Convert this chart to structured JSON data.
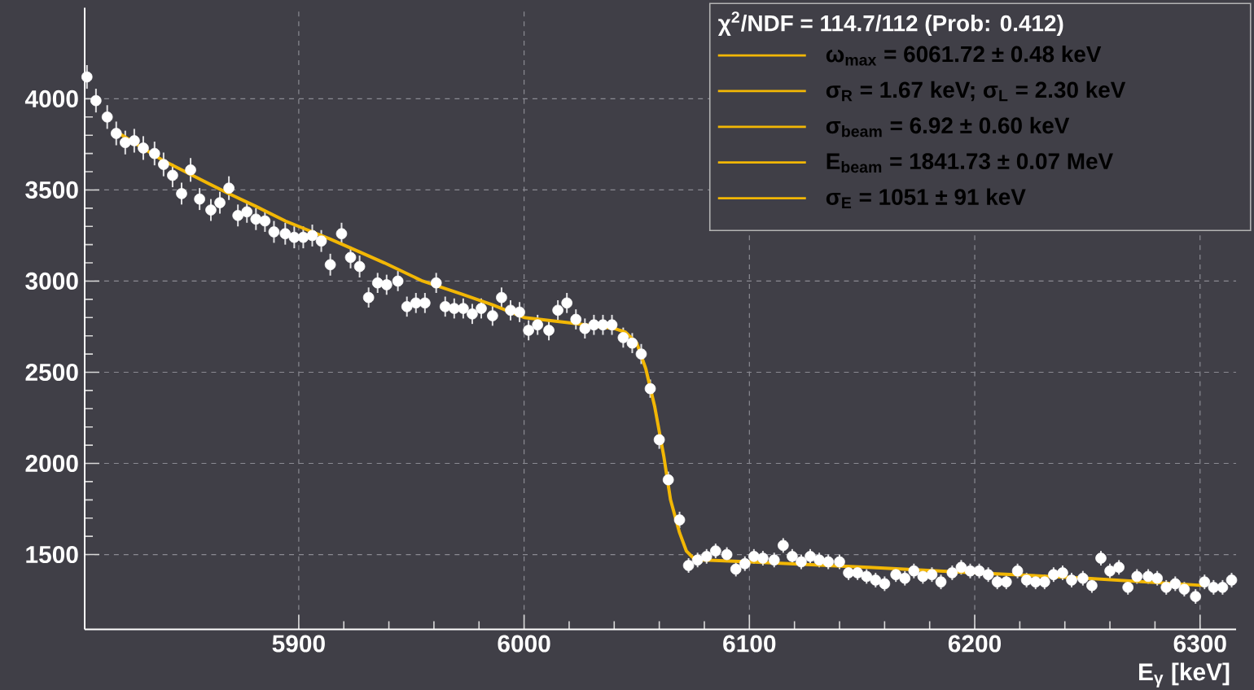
{
  "chart_data": {
    "type": "scatter",
    "xlabel": "E$_{γ}$ [keV]",
    "legend_title": "χ$^{2}$/NDF = 114.7/112  (Prob: 0.412)",
    "xlim": [
      5805,
      6316
    ],
    "ylim": [
      1090,
      4500
    ],
    "xticks": [
      5900,
      6000,
      6100,
      6200,
      6300
    ],
    "yticks": [
      1500,
      2000,
      2500,
      3000,
      3500,
      4000
    ],
    "grid": true,
    "legend": "top right",
    "annotations": [
      "σ$_{R}$ = 1.67 keV;   σ$_{L}$ =  2.30 keV",
      "σ$_{beam}$ =    6.92 ± 0.60 keV",
      "E$_{beam}$ =  1841.73 ±  0.07 MeV",
      "σ$_{E}$ = 1051 ±   91 keV"
    ],
    "series": [
      {
        "color": "#ffffff",
        "marker": "circle",
        "x": [
          5806,
          5810,
          5815,
          5819,
          5823,
          5827,
          5831,
          5836,
          5840,
          5844,
          5848,
          5852,
          5856,
          5861,
          5865,
          5869,
          5873,
          5877,
          5881,
          5885,
          5889,
          5894,
          5898,
          5902,
          5906,
          5910,
          5914,
          5919,
          5923,
          5927,
          5931,
          5935,
          5939,
          5944,
          5948,
          5952,
          5956,
          5961,
          5965,
          5969,
          5973,
          5977,
          5981,
          5986,
          5990,
          5994,
          5998,
          6002,
          6006,
          6011,
          6015,
          6019,
          6023,
          6027,
          6031,
          6035,
          6039,
          6044,
          6048,
          6052,
          6056,
          6060,
          6064,
          6069,
          6073,
          6077,
          6081,
          6085,
          6090,
          6094,
          6098,
          6102,
          6106,
          6111,
          6115,
          6119,
          6123,
          6127,
          6131,
          6135,
          6140,
          6144,
          6148,
          6152,
          6156,
          6160,
          6165,
          6169,
          6173,
          6177,
          6181,
          6185,
          6190,
          6194,
          6198,
          6202,
          6206,
          6210,
          6214,
          6219,
          6223,
          6227,
          6231,
          6235,
          6239,
          6243,
          6248,
          6252,
          6256,
          6260,
          6264,
          6268,
          6272,
          6277,
          6281,
          6285,
          6289,
          6293,
          6298,
          6302,
          6306,
          6310,
          6314
        ],
        "values": [
          4120,
          3990,
          3900,
          3810,
          3760,
          3770,
          3730,
          3700,
          3640,
          3580,
          3480,
          3610,
          3450,
          3390,
          3430,
          3510,
          3360,
          3380,
          3340,
          3330,
          3270,
          3260,
          3240,
          3240,
          3250,
          3220,
          3090,
          3260,
          3130,
          3080,
          2910,
          2990,
          2980,
          3000,
          2860,
          2880,
          2880,
          2990,
          2860,
          2850,
          2850,
          2820,
          2850,
          2810,
          2910,
          2840,
          2830,
          2730,
          2760,
          2730,
          2840,
          2880,
          2790,
          2740,
          2760,
          2760,
          2760,
          2690,
          2660,
          2600,
          2410,
          2130,
          1910,
          1690,
          1440,
          1470,
          1490,
          1520,
          1500,
          1420,
          1450,
          1490,
          1480,
          1470,
          1550,
          1490,
          1460,
          1490,
          1470,
          1460,
          1460,
          1400,
          1400,
          1380,
          1360,
          1340,
          1390,
          1370,
          1410,
          1380,
          1390,
          1350,
          1400,
          1430,
          1410,
          1410,
          1390,
          1350,
          1350,
          1410,
          1360,
          1350,
          1350,
          1390,
          1400,
          1360,
          1370,
          1330,
          1480,
          1410,
          1430,
          1320,
          1380,
          1380,
          1370,
          1320,
          1340,
          1310,
          1270,
          1350,
          1320,
          1320,
          1360
        ],
        "errors": [
          65,
          65,
          65,
          65,
          65,
          65,
          65,
          65,
          65,
          65,
          60,
          65,
          60,
          60,
          60,
          65,
          60,
          60,
          60,
          60,
          60,
          60,
          60,
          60,
          60,
          60,
          60,
          60,
          60,
          60,
          55,
          55,
          55,
          55,
          55,
          55,
          55,
          55,
          55,
          55,
          55,
          55,
          55,
          55,
          55,
          55,
          55,
          55,
          55,
          55,
          55,
          55,
          55,
          55,
          55,
          55,
          55,
          55,
          55,
          55,
          50,
          50,
          45,
          45,
          40,
          40,
          40,
          40,
          40,
          40,
          40,
          40,
          40,
          40,
          40,
          40,
          40,
          40,
          40,
          40,
          40,
          40,
          40,
          40,
          40,
          40,
          40,
          40,
          40,
          40,
          40,
          40,
          40,
          40,
          40,
          40,
          40,
          40,
          40,
          40,
          40,
          40,
          40,
          40,
          40,
          40,
          40,
          40,
          40,
          40,
          40,
          40,
          40,
          40,
          40,
          40,
          40,
          40,
          40,
          40,
          40,
          40,
          40
        ]
      },
      {
        "type": "line",
        "name": "ω$_{max}$ = 6061.72 ± 0.48 keV",
        "color": "#f2b705",
        "marker": "none",
        "line_style": "solid",
        "x": [
          5819,
          5840,
          5856,
          5869,
          5881,
          5894,
          5902,
          5914,
          5927,
          5938,
          5955,
          5972,
          5986,
          6000,
          6021,
          6040,
          6045,
          6050,
          6054,
          6058,
          6062,
          6065,
          6069,
          6072,
          6076,
          6080,
          6100,
          6153,
          6200,
          6250,
          6302
        ],
        "values": [
          3820,
          3660,
          3560,
          3480,
          3410,
          3330,
          3290,
          3230,
          3160,
          3100,
          3000,
          2930,
          2870,
          2800,
          2770,
          2740,
          2720,
          2660,
          2520,
          2310,
          2040,
          1800,
          1620,
          1520,
          1470,
          1470,
          1460,
          1430,
          1400,
          1370,
          1330
        ]
      }
    ]
  }
}
